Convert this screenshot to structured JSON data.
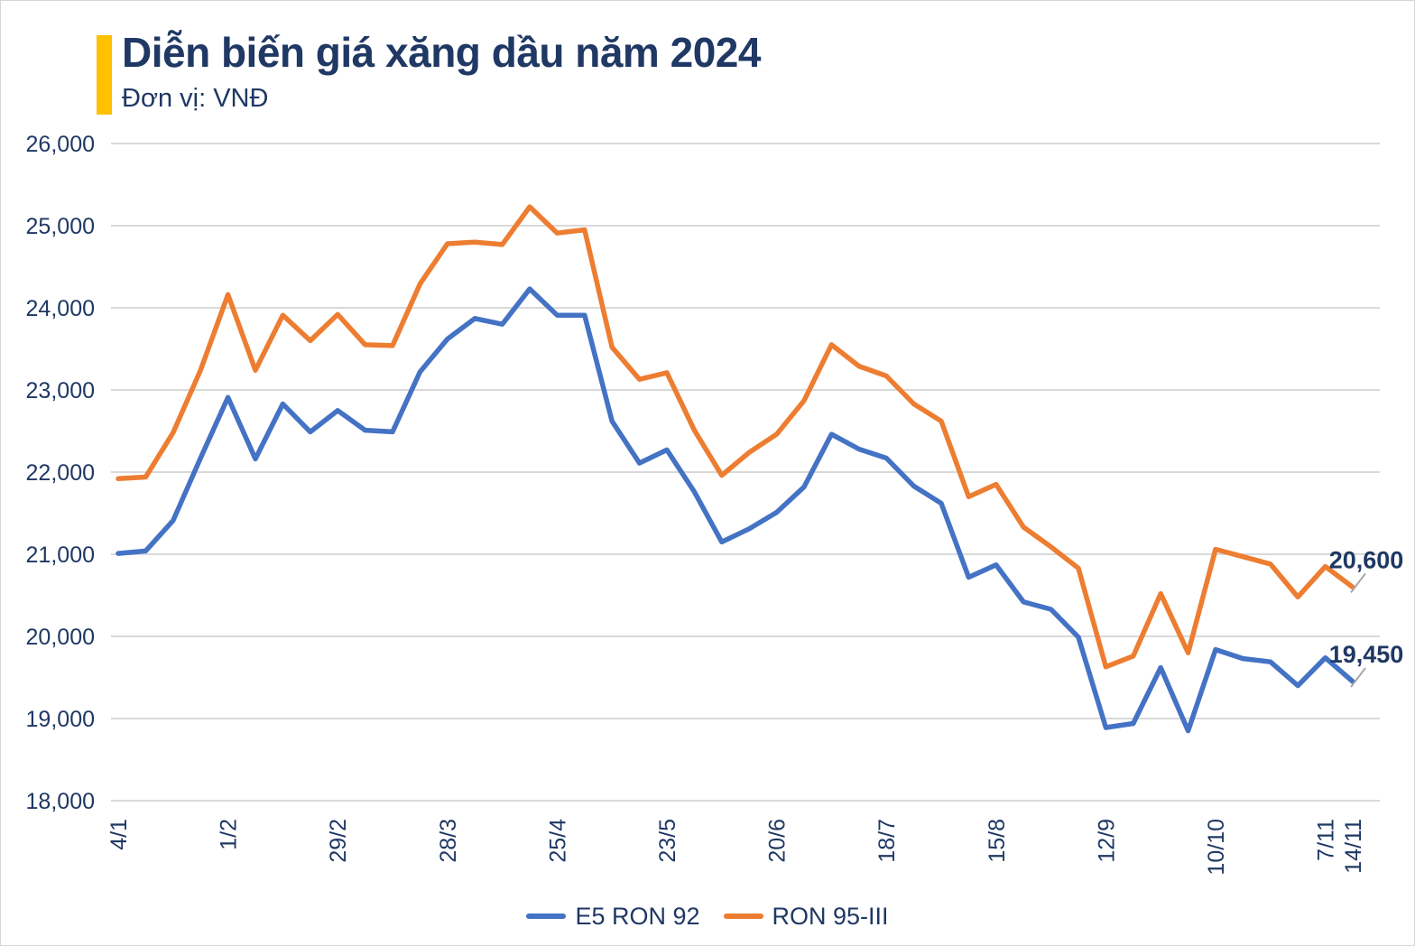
{
  "header": {
    "title": "Diễn biến giá xăng dầu năm 2024",
    "subtitle": "Đơn vị: VNĐ",
    "accent_color": "#FFC000",
    "text_color": "#1F3864"
  },
  "chart_data": {
    "type": "line",
    "title": "Diễn biến giá xăng dầu năm 2024",
    "unit": "VNĐ",
    "grid": true,
    "legend_position": "bottom",
    "ylim": [
      18000,
      26000
    ],
    "y_tick_step": 1000,
    "y_tick_labels": [
      "26,000",
      "25,000",
      "24,000",
      "23,000",
      "22,000",
      "21,000",
      "20,000",
      "19,000",
      "18,000"
    ],
    "x": [
      "4/1",
      "11/1",
      "18/1",
      "25/1",
      "1/2",
      "8/2",
      "15/2",
      "22/2",
      "29/2",
      "7/3",
      "14/3",
      "21/3",
      "28/3",
      "4/4",
      "11/4",
      "18/4",
      "25/4",
      "2/5",
      "9/5",
      "16/5",
      "23/5",
      "30/5",
      "6/6",
      "13/6",
      "20/6",
      "27/6",
      "4/7",
      "11/7",
      "18/7",
      "25/7",
      "1/8",
      "8/8",
      "15/8",
      "22/8",
      "29/8",
      "5/9",
      "12/9",
      "19/9",
      "26/9",
      "3/10",
      "10/10",
      "17/10",
      "24/10",
      "31/10",
      "7/11",
      "14/11"
    ],
    "x_tick_labels": [
      "4/1",
      "1/2",
      "29/2",
      "28/3",
      "25/4",
      "23/5",
      "20/6",
      "18/7",
      "15/8",
      "12/9",
      "10/10",
      "7/11",
      "14/11"
    ],
    "x_tick_indices": [
      0,
      4,
      8,
      12,
      16,
      20,
      24,
      28,
      32,
      36,
      40,
      44,
      45
    ],
    "series": [
      {
        "name": "E5 RON 92",
        "color": "#4472C4",
        "end_label": "19,450",
        "values": [
          21010,
          21040,
          21410,
          22170,
          22910,
          22160,
          22830,
          22490,
          22750,
          22510,
          22490,
          23220,
          23620,
          23870,
          23800,
          24230,
          23910,
          23910,
          22620,
          22110,
          22270,
          21760,
          21150,
          21310,
          21510,
          21820,
          22460,
          22280,
          22170,
          21830,
          21620,
          20720,
          20870,
          20420,
          20330,
          19990,
          18890,
          18940,
          19620,
          18850,
          19840,
          19730,
          19690,
          19400,
          19740,
          19450
        ]
      },
      {
        "name": "RON 95-III",
        "color": "#ED7D31",
        "end_label": "20,600",
        "values": [
          21920,
          21940,
          22480,
          23240,
          24160,
          23240,
          23910,
          23600,
          23920,
          23550,
          23540,
          24290,
          24780,
          24800,
          24770,
          25230,
          24910,
          24950,
          23520,
          23130,
          23210,
          22510,
          21960,
          22240,
          22460,
          22870,
          23550,
          23290,
          23170,
          22830,
          22620,
          21700,
          21850,
          21330,
          21090,
          20830,
          19630,
          19760,
          20520,
          19800,
          21060,
          20970,
          20880,
          20480,
          20850,
          20600
        ]
      }
    ],
    "style": {
      "gridline_color": "#D9D9D9",
      "axis_text_color": "#1F3864",
      "leader_color": "#A6A6A6"
    }
  }
}
